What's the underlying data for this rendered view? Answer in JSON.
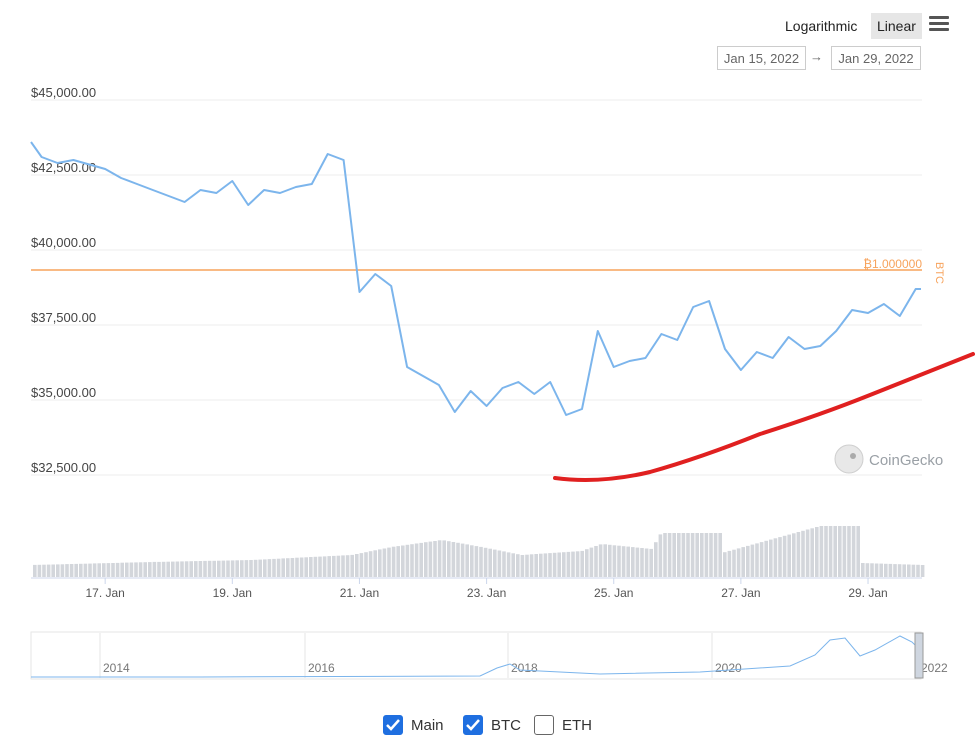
{
  "toolbar": {
    "scale_log": "Logarithmic",
    "scale_linear": "Linear",
    "active_scale": "Linear",
    "date_from": "Jan 15, 2022",
    "date_to": "Jan 29, 2022",
    "date_arrow": "→",
    "menu_icon": "hamburger-icon"
  },
  "watermark": "CoinGecko",
  "legend": [
    {
      "label": "Main",
      "checked": true
    },
    {
      "label": "BTC",
      "checked": true
    },
    {
      "label": "ETH",
      "checked": false
    }
  ],
  "colors": {
    "price_line": "#7cb5ec",
    "reference_line": "#f7a35c",
    "volume_bars": "#d3d6db",
    "annotation": "#e02020",
    "checkbox": "#1f6fe0"
  },
  "chart_data": {
    "type": "line",
    "y_ticks": [
      45000,
      42500,
      40000,
      37500,
      35000,
      32500
    ],
    "y_tick_labels": [
      "$45,000.00",
      "$42,500.00",
      "$40,000.00",
      "$37,500.00",
      "$35,000.00",
      "$32,500.00"
    ],
    "ylim": [
      32500,
      45000
    ],
    "x_ticks": [
      "17. Jan",
      "19. Jan",
      "21. Jan",
      "23. Jan",
      "25. Jan",
      "27. Jan",
      "29. Jan"
    ],
    "xlim": [
      "2022-01-15T20:00",
      "2022-01-29T20:00"
    ],
    "grid": true,
    "series": [
      {
        "name": "",
        "x": [
          "2022-01-15T20:00",
          "2022-01-16T00:00",
          "2022-01-16T06:00",
          "2022-01-16T12:00",
          "2022-01-16T18:00",
          "2022-01-17T00:00",
          "2022-01-17T06:00",
          "2022-01-17T12:00",
          "2022-01-17T18:00",
          "2022-01-18T00:00",
          "2022-01-18T06:00",
          "2022-01-18T12:00",
          "2022-01-18T18:00",
          "2022-01-19T00:00",
          "2022-01-19T06:00",
          "2022-01-19T12:00",
          "2022-01-19T18:00",
          "2022-01-20T00:00",
          "2022-01-20T06:00",
          "2022-01-20T12:00",
          "2022-01-20T18:00",
          "2022-01-21T00:00",
          "2022-01-21T06:00",
          "2022-01-21T12:00",
          "2022-01-21T18:00",
          "2022-01-22T00:00",
          "2022-01-22T06:00",
          "2022-01-22T12:00",
          "2022-01-22T18:00",
          "2022-01-23T00:00",
          "2022-01-23T06:00",
          "2022-01-23T12:00",
          "2022-01-23T18:00",
          "2022-01-24T00:00",
          "2022-01-24T06:00",
          "2022-01-24T12:00",
          "2022-01-24T18:00",
          "2022-01-25T00:00",
          "2022-01-25T06:00",
          "2022-01-25T12:00",
          "2022-01-25T18:00",
          "2022-01-26T00:00",
          "2022-01-26T06:00",
          "2022-01-26T12:00",
          "2022-01-26T18:00",
          "2022-01-27T00:00",
          "2022-01-27T06:00",
          "2022-01-27T12:00",
          "2022-01-27T18:00",
          "2022-01-28T00:00",
          "2022-01-28T06:00",
          "2022-01-28T12:00",
          "2022-01-28T18:00",
          "2022-01-29T00:00",
          "2022-01-29T06:00",
          "2022-01-29T12:00",
          "2022-01-29T18:00",
          "2022-01-29T20:00"
        ],
        "y": [
          43600,
          43100,
          42900,
          43000,
          42850,
          42700,
          42400,
          42200,
          42000,
          41800,
          41600,
          42000,
          41900,
          42300,
          41500,
          42000,
          41900,
          42100,
          42200,
          43200,
          43000,
          38600,
          39200,
          38800,
          36100,
          35800,
          35500,
          34600,
          35300,
          34800,
          35400,
          35600,
          35200,
          35600,
          34500,
          34700,
          37300,
          36100,
          36300,
          36400,
          37200,
          37000,
          38100,
          38300,
          36700,
          36000,
          36600,
          36400,
          37100,
          36700,
          36800,
          37300,
          38000,
          37900,
          38200,
          37800,
          38700,
          38700
        ]
      }
    ],
    "reference_line": {
      "value": 1.0,
      "label": "₿1.000000",
      "axis_label": "BTC"
    },
    "navigator": {
      "labels": [
        "2014",
        "2016",
        "2018",
        "2020",
        "2022"
      ]
    }
  }
}
